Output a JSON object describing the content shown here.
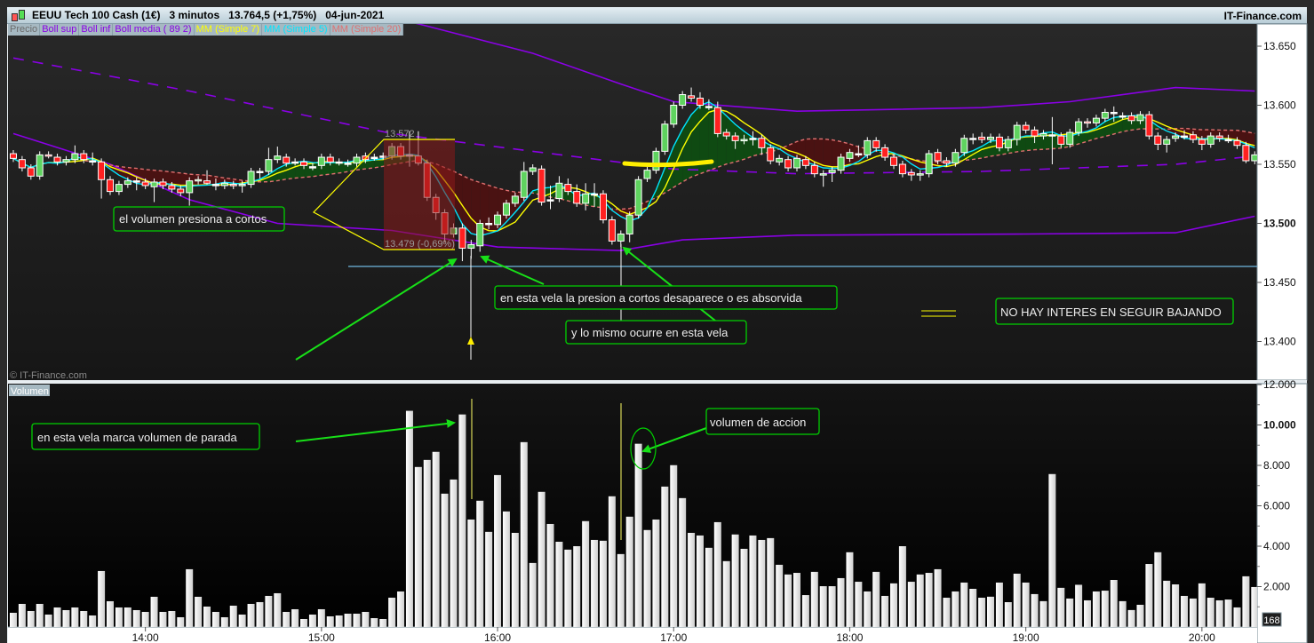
{
  "header": {
    "title": "EEUU Tech 100 Cash (1€)   3 minutos   13.764,5 (+1,75%)   04-jun-2021",
    "brand": "IT-Finance.com",
    "icon": "candlestick-icon"
  },
  "legend": [
    {
      "label": "Precio",
      "color": "#6a6a6a"
    },
    {
      "label": "Boll sup",
      "color": "#8a00e6"
    },
    {
      "label": "Boll inf",
      "color": "#8a00e6"
    },
    {
      "label": "Boll media ( 89 2)",
      "color": "#8a00e6"
    },
    {
      "label": "MM (Simple 7)",
      "color": "#ffff00"
    },
    {
      "label": "MM (Simple 5)",
      "color": "#00e5ff"
    },
    {
      "label": "MM (Simple 20)",
      "color": "#e07070"
    }
  ],
  "watermark": "© IT-Finance.com",
  "volume_panel_label": "Volumen",
  "volume_counter": "168",
  "annotations": {
    "box1": "el volumen presiona a cortos",
    "box2": "en esta vela la presion a cortos desaparece o es absorvida",
    "box3": "y lo mismo ocurre en esta vela",
    "box4": "NO HAY INTERES EN SEGUIR BAJANDO",
    "box5": "en esta vela marca volumen de parada",
    "box6": "volumen de accion",
    "measure_high": "13.572",
    "measure_low": "13.479 (-0,69%)"
  },
  "colors": {
    "up": "#5fd35f",
    "down": "#ff2020",
    "annotation": "#00d000",
    "drawing": "#ffff00",
    "support_line": "#6fb7e0"
  },
  "chart_data": [
    {
      "type": "candlestick",
      "title": "EEUU Tech 100 Cash (1€)",
      "x_ticks": [
        "14:00",
        "15:00",
        "16:00",
        "17:00",
        "18:00",
        "19:00",
        "20:00"
      ],
      "y_ticks": [
        "13.650",
        "13.600",
        "13.550",
        "13.500",
        "13.450",
        "13.400"
      ],
      "ylim": [
        13380,
        13668
      ],
      "ohlc": [
        [
          13559,
          13562,
          13552,
          13555
        ],
        [
          13554,
          13557,
          13544,
          13547
        ],
        [
          13547,
          13550,
          13537,
          13540
        ],
        [
          13540,
          13561,
          13537,
          13558
        ],
        [
          13558,
          13561,
          13555,
          13557
        ],
        [
          13556,
          13559,
          13549,
          13552
        ],
        [
          13552,
          13557,
          13549,
          13554
        ],
        [
          13554,
          13566,
          13551,
          13559
        ],
        [
          13559,
          13562,
          13551,
          13554
        ],
        [
          13553,
          13560,
          13549,
          13553
        ],
        [
          13552,
          13555,
          13521,
          13537
        ],
        [
          13537,
          13540,
          13524,
          13527
        ],
        [
          13527,
          13536,
          13524,
          13533
        ],
        [
          13533,
          13539,
          13530,
          13536
        ],
        [
          13536,
          13539,
          13528,
          13536
        ],
        [
          13535,
          13538,
          13529,
          13532
        ],
        [
          13531,
          13538,
          13518,
          13535
        ],
        [
          13535,
          13538,
          13529,
          13532
        ],
        [
          13532,
          13535,
          13526,
          13529
        ],
        [
          13529,
          13532,
          13523,
          13526
        ],
        [
          13526,
          13539,
          13515,
          13536
        ],
        [
          13536,
          13540,
          13533,
          13537
        ],
        [
          13536,
          13545,
          13533,
          13534
        ],
        [
          13533,
          13538,
          13528,
          13533
        ],
        [
          13532,
          13537,
          13529,
          13534
        ],
        [
          13533,
          13536,
          13529,
          13532
        ],
        [
          13532,
          13536,
          13526,
          13533
        ],
        [
          13533,
          13547,
          13530,
          13544
        ],
        [
          13544,
          13547,
          13538,
          13544
        ],
        [
          13544,
          13564,
          13541,
          13554
        ],
        [
          13554,
          13565,
          13551,
          13557
        ],
        [
          13556,
          13559,
          13548,
          13551
        ],
        [
          13552,
          13555,
          13549,
          13552
        ],
        [
          13552,
          13555,
          13546,
          13549
        ],
        [
          13548,
          13551,
          13545,
          13548
        ],
        [
          13549,
          13559,
          13546,
          13556
        ],
        [
          13556,
          13559,
          13549,
          13552
        ],
        [
          13552,
          13555,
          13549,
          13552
        ],
        [
          13551,
          13554,
          13548,
          13551
        ],
        [
          13551,
          13559,
          13548,
          13556
        ],
        [
          13557,
          13560,
          13551,
          13554
        ],
        [
          13556,
          13559,
          13553,
          13556
        ],
        [
          13557,
          13560,
          13554,
          13557
        ],
        [
          13557,
          13568,
          13554,
          13565
        ],
        [
          13565,
          13568,
          13554,
          13557
        ],
        [
          13558,
          13578,
          13548,
          13558
        ],
        [
          13557,
          13578,
          13549,
          13551
        ],
        [
          13551,
          13554,
          13519,
          13522
        ],
        [
          13522,
          13525,
          13503,
          13509
        ],
        [
          13509,
          13512,
          13484,
          13491
        ],
        [
          13491,
          13500,
          13488,
          13496
        ],
        [
          13496,
          13500,
          13468,
          13479
        ],
        [
          13479,
          13486,
          13470,
          13482
        ],
        [
          13481,
          13503,
          13476,
          13500
        ],
        [
          13500,
          13505,
          13495,
          13500
        ],
        [
          13499,
          13510,
          13496,
          13507
        ],
        [
          13507,
          13520,
          13504,
          13517
        ],
        [
          13517,
          13526,
          13514,
          13523
        ],
        [
          13522,
          13552,
          13519,
          13544
        ],
        [
          13544,
          13550,
          13541,
          13547
        ],
        [
          13546,
          13549,
          13515,
          13518
        ],
        [
          13520,
          13532,
          13512,
          13520
        ],
        [
          13521,
          13540,
          13518,
          13534
        ],
        [
          13533,
          13538,
          13524,
          13527
        ],
        [
          13527,
          13533,
          13514,
          13517
        ],
        [
          13517,
          13534,
          13511,
          13525
        ],
        [
          13525,
          13534,
          13514,
          13525
        ],
        [
          13525,
          13528,
          13500,
          13503
        ],
        [
          13503,
          13506,
          13482,
          13485
        ],
        [
          13485,
          13494,
          13480,
          13491
        ],
        [
          13491,
          13510,
          13484,
          13507
        ],
        [
          13507,
          13540,
          13504,
          13537
        ],
        [
          13538,
          13548,
          13535,
          13545
        ],
        [
          13545,
          13564,
          13542,
          13561
        ],
        [
          13561,
          13587,
          13558,
          13584
        ],
        [
          13584,
          13603,
          13581,
          13600
        ],
        [
          13600,
          13612,
          13597,
          13609
        ],
        [
          13608,
          13615,
          13603,
          13606
        ],
        [
          13606,
          13611,
          13597,
          13600
        ],
        [
          13599,
          13605,
          13596,
          13599
        ],
        [
          13598,
          13603,
          13573,
          13576
        ],
        [
          13577,
          13580,
          13571,
          13574
        ],
        [
          13574,
          13577,
          13563,
          13570
        ],
        [
          13570,
          13575,
          13567,
          13571
        ],
        [
          13572,
          13578,
          13566,
          13572
        ],
        [
          13572,
          13575,
          13558,
          13564
        ],
        [
          13564,
          13567,
          13550,
          13553
        ],
        [
          13552,
          13558,
          13549,
          13555
        ],
        [
          13554,
          13557,
          13544,
          13547
        ],
        [
          13547,
          13558,
          13544,
          13555
        ],
        [
          13554,
          13557,
          13546,
          13549
        ],
        [
          13549,
          13552,
          13539,
          13542
        ],
        [
          13541,
          13545,
          13531,
          13542
        ],
        [
          13543,
          13548,
          13535,
          13545
        ],
        [
          13545,
          13559,
          13542,
          13556
        ],
        [
          13555,
          13563,
          13552,
          13560
        ],
        [
          13559,
          13566,
          13556,
          13559
        ],
        [
          13558,
          13573,
          13555,
          13570
        ],
        [
          13570,
          13573,
          13561,
          13564
        ],
        [
          13564,
          13567,
          13553,
          13556
        ],
        [
          13556,
          13559,
          13546,
          13549
        ],
        [
          13550,
          13553,
          13539,
          13542
        ],
        [
          13543,
          13546,
          13536,
          13541
        ],
        [
          13541,
          13545,
          13536,
          13542
        ],
        [
          13542,
          13562,
          13539,
          13559
        ],
        [
          13560,
          13563,
          13550,
          13553
        ],
        [
          13553,
          13556,
          13548,
          13551
        ],
        [
          13551,
          13563,
          13548,
          13560
        ],
        [
          13560,
          13575,
          13557,
          13572
        ],
        [
          13572,
          13576,
          13567,
          13572
        ],
        [
          13573,
          13577,
          13568,
          13571
        ],
        [
          13571,
          13576,
          13568,
          13573
        ],
        [
          13573,
          13576,
          13561,
          13564
        ],
        [
          13564,
          13574,
          13561,
          13571
        ],
        [
          13571,
          13586,
          13566,
          13583
        ],
        [
          13583,
          13586,
          13576,
          13579
        ],
        [
          13579,
          13582,
          13568,
          13574
        ],
        [
          13574,
          13579,
          13571,
          13576
        ],
        [
          13575,
          13590,
          13550,
          13575
        ],
        [
          13574,
          13577,
          13564,
          13567
        ],
        [
          13567,
          13580,
          13564,
          13577
        ],
        [
          13577,
          13589,
          13574,
          13586
        ],
        [
          13586,
          13589,
          13581,
          13585
        ],
        [
          13585,
          13592,
          13582,
          13589
        ],
        [
          13589,
          13597,
          13586,
          13594
        ],
        [
          13594,
          13599,
          13586,
          13594
        ],
        [
          13591,
          13594,
          13588,
          13591
        ],
        [
          13591,
          13594,
          13584,
          13587
        ],
        [
          13587,
          13595,
          13584,
          13592
        ],
        [
          13592,
          13595,
          13571,
          13574
        ],
        [
          13574,
          13577,
          13562,
          13567
        ],
        [
          13567,
          13574,
          13560,
          13571
        ],
        [
          13572,
          13577,
          13569,
          13574
        ],
        [
          13574,
          13579,
          13571,
          13574
        ],
        [
          13575,
          13578,
          13568,
          13571
        ],
        [
          13571,
          13574,
          13562,
          13567
        ],
        [
          13567,
          13577,
          13564,
          13574
        ],
        [
          13574,
          13577,
          13569,
          13572
        ],
        [
          13571,
          13575,
          13568,
          13571
        ],
        [
          13570,
          13573,
          13563,
          13566
        ],
        [
          13566,
          13569,
          13551,
          13553
        ],
        [
          13553,
          13561,
          13550,
          13558
        ]
      ],
      "bollinger": {
        "upper": [
          [
            "15:15",
            13680
          ],
          [
            "15:36",
            13667
          ],
          [
            "16:12",
            13644
          ],
          [
            "16:42",
            13618
          ],
          [
            "17:00",
            13603
          ],
          [
            "17:42",
            13595
          ],
          [
            "18:45",
            13598
          ],
          [
            "19:15",
            13603
          ],
          [
            "19:51",
            13615
          ],
          [
            "20:18",
            13612
          ]
        ],
        "middle": [
          [
            "13:15",
            13640
          ],
          [
            "14:15",
            13612
          ],
          [
            "15:24",
            13576
          ],
          [
            "16:12",
            13561
          ],
          [
            "17:00",
            13546
          ],
          [
            "17:42",
            13542
          ],
          [
            "18:45",
            13544
          ],
          [
            "19:51",
            13550
          ],
          [
            "20:18",
            13557
          ]
        ],
        "lower": [
          [
            "13:15",
            13576
          ],
          [
            "13:48",
            13550
          ],
          [
            "14:15",
            13520
          ],
          [
            "14:45",
            13500
          ],
          [
            "15:24",
            13494
          ],
          [
            "16:00",
            13480
          ],
          [
            "16:42",
            13477
          ],
          [
            "17:03",
            13486
          ],
          [
            "17:42",
            13490
          ],
          [
            "19:00",
            13491
          ],
          [
            "19:51",
            13492
          ],
          [
            "20:18",
            13506
          ]
        ]
      },
      "moving_averages": [
        {
          "name": "MM (Simple 5)",
          "period": 5
        },
        {
          "name": "MM (Simple 7)",
          "period": 7
        },
        {
          "name": "MM (Simple 20)",
          "period": 20
        }
      ],
      "support_level": 13465
    },
    {
      "type": "bar",
      "title": "Volumen",
      "y_ticks": [
        "12.000",
        "10.000",
        "8.000",
        "6.000",
        "4.000",
        "2.000"
      ],
      "ylim": [
        0,
        12000
      ],
      "values": [
        704,
        1144,
        792,
        1144,
        616,
        968,
        836,
        968,
        792,
        572,
        2772,
        1276,
        968,
        968,
        836,
        748,
        1496,
        748,
        792,
        484,
        2860,
        1496,
        1012,
        748,
        484,
        1056,
        616,
        1144,
        1232,
        1540,
        1672,
        748,
        880,
        396,
        616,
        880,
        528,
        572,
        660,
        660,
        748,
        440,
        396,
        1452,
        1760,
        10700,
        7920,
        8270,
        8670,
        6600,
        7300,
        10520,
        5320,
        6250,
        4710,
        7520,
        5720,
        4660,
        9150,
        3170,
        6690,
        5100,
        4220,
        3830,
        4000,
        5240,
        4310,
        4270,
        6470,
        3610,
        5460,
        9070,
        4800,
        5320,
        6950,
        8010,
        6380,
        4660,
        4530,
        3920,
        5190,
        3260,
        4580,
        3870,
        4530,
        4310,
        4400,
        3080,
        2600,
        2680,
        1580,
        2730,
        2020,
        2020,
        2420,
        3700,
        2240,
        1760,
        2730,
        1540,
        2160,
        4000,
        2240,
        2600,
        2680,
        2860,
        1450,
        1760,
        2200,
        1890,
        1450,
        1500,
        2200,
        1230,
        2640,
        2200,
        1630,
        1280,
        7570,
        1940,
        1410,
        2090,
        1320,
        1760,
        1800,
        2330,
        1280,
        840,
        1100,
        3120,
        3700,
        2290,
        2110,
        1540,
        1410,
        2160,
        1450,
        1320,
        1360,
        970,
        2510,
        1980
      ]
    }
  ]
}
